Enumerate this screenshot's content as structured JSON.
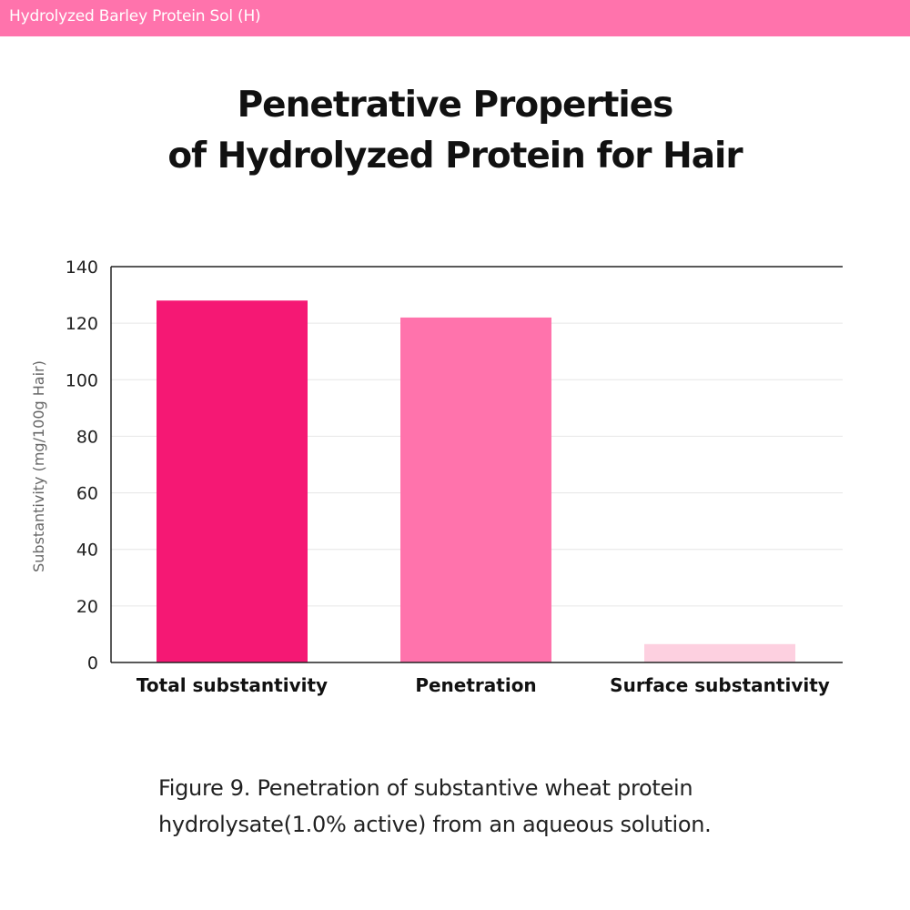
{
  "header": {
    "label": "Hydrolyzed Barley Protein Sol (H)"
  },
  "title": {
    "line1": "Penetrative Properties",
    "line2": "of Hydrolyzed Protein for Hair"
  },
  "caption": {
    "figure_label": "Figure 9.",
    "text": " Penetration of substantive wheat protein hydrolysate(1.0% active) from an aqueous solution."
  },
  "colors": {
    "header_bg": "#ff73ac",
    "bars": [
      "#f51874",
      "#ff73ac",
      "#fdd0e0"
    ]
  },
  "chart_data": {
    "type": "bar",
    "categories": [
      "Total substantivity",
      "Penetration",
      "Surface substantivity"
    ],
    "values": [
      128,
      122,
      6.5
    ],
    "ylabel": "Substantivity (mg/100g Hair)",
    "ylim": [
      0,
      140
    ],
    "yticks": [
      0,
      20,
      40,
      60,
      80,
      100,
      120,
      140
    ],
    "grid": true,
    "legend": "none"
  }
}
